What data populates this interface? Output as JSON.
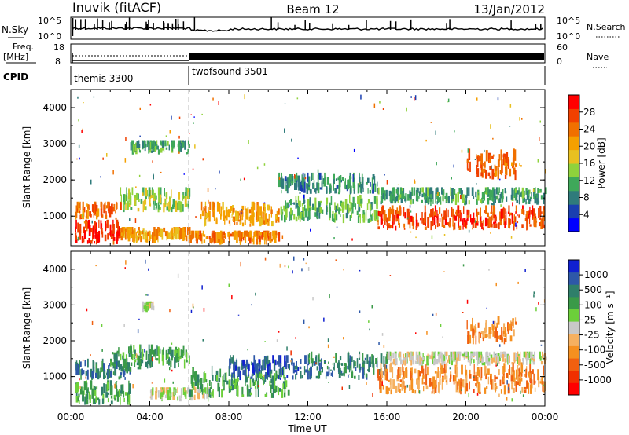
{
  "header": {
    "station": "Inuvik (fitACF)",
    "beam": "Beam 12",
    "date": "13/Jan/2012"
  },
  "top_panels": {
    "nsky_label": "N.Sky",
    "nsearch_label": "N.Search",
    "freq_label_1": "Freq.",
    "freq_label_2": "[MHz]",
    "cpid_label": "CPID",
    "nave_label": "Nave",
    "noise_ticks_left": [
      "10^5",
      "10^0"
    ],
    "noise_ticks_right": [
      "10^5",
      "10^0"
    ],
    "freq_ticks": [
      "18",
      "8"
    ],
    "nave_ticks": [
      "60",
      "0"
    ],
    "cpid_segments": [
      {
        "label": "themis 3300",
        "start_hour": 0
      },
      {
        "label": "twofsound 3501",
        "start_hour": 6
      }
    ]
  },
  "chart_data": [
    {
      "type": "heatmap",
      "panel": "power",
      "ylabel": "Slant Range [km]",
      "xlabel": "",
      "y_ticks": [
        "1000",
        "2000",
        "3000",
        "4000"
      ],
      "ylim": [
        180,
        4500
      ],
      "xlim": [
        0,
        24
      ],
      "colorbar": {
        "label": "Power [dB]",
        "ticks": [
          "4",
          "8",
          "12",
          "16",
          "20",
          "24",
          "28"
        ],
        "range": [
          0,
          32
        ],
        "colors": [
          "#0000ff",
          "#1a3fb0",
          "#2f7b7b",
          "#3fa85a",
          "#8fd23c",
          "#e8c020",
          "#f5a000",
          "#f07000",
          "#f04000",
          "#ff0000"
        ]
      },
      "echo_regions": [
        {
          "x0": 0.2,
          "x1": 2.5,
          "y0": 200,
          "y1": 900,
          "level": 30
        },
        {
          "x0": 0.2,
          "x1": 2.5,
          "y0": 900,
          "y1": 1400,
          "level": 26
        },
        {
          "x0": 2.5,
          "x1": 6.0,
          "y0": 250,
          "y1": 700,
          "level": 22
        },
        {
          "x0": 2.5,
          "x1": 6.0,
          "y0": 1100,
          "y1": 1800,
          "level": 14
        },
        {
          "x0": 6.0,
          "x1": 10.5,
          "y0": 200,
          "y1": 600,
          "level": 24
        },
        {
          "x0": 6.5,
          "x1": 10.5,
          "y0": 700,
          "y1": 1400,
          "level": 22
        },
        {
          "x0": 10.5,
          "x1": 15.5,
          "y0": 800,
          "y1": 1600,
          "level": 12
        },
        {
          "x0": 10.5,
          "x1": 15.5,
          "y0": 1600,
          "y1": 2200,
          "level": 8
        },
        {
          "x0": 15.5,
          "x1": 24.0,
          "y0": 600,
          "y1": 1300,
          "level": 28
        },
        {
          "x0": 15.5,
          "x1": 24.0,
          "y0": 1300,
          "y1": 1800,
          "level": 10
        },
        {
          "x0": 20.0,
          "x1": 22.5,
          "y0": 2000,
          "y1": 2900,
          "level": 26
        },
        {
          "x0": 3.0,
          "x1": 6.0,
          "y0": 2700,
          "y1": 3100,
          "level": 10
        }
      ]
    },
    {
      "type": "heatmap",
      "panel": "velocity",
      "ylabel": "Slant Range [km]",
      "xlabel": "Time UT",
      "x_ticks": [
        "00:00",
        "04:00",
        "08:00",
        "12:00",
        "16:00",
        "20:00",
        "00:00"
      ],
      "y_ticks": [
        "1000",
        "2000",
        "3000",
        "4000"
      ],
      "ylim": [
        180,
        4500
      ],
      "xlim": [
        0,
        24
      ],
      "colorbar": {
        "label": "Velocity [m s⁻¹]",
        "ticks": [
          "1000",
          "500",
          "100",
          "25",
          "-25",
          "-100",
          "-500",
          "-1000"
        ],
        "colors": [
          "#1020d0",
          "#2e58a8",
          "#2f7f6a",
          "#3a9a48",
          "#6ccf3a",
          "#c8c8c8",
          "#f5b060",
          "#f59020",
          "#f06010",
          "#f03000",
          "#ff0000"
        ]
      },
      "echo_regions": [
        {
          "x0": 0.2,
          "x1": 3.0,
          "y0": 200,
          "y1": 900,
          "level": 3
        },
        {
          "x0": 0.2,
          "x1": 3.0,
          "y0": 900,
          "y1": 1500,
          "level": 2
        },
        {
          "x0": 2.0,
          "x1": 6.0,
          "y0": 1200,
          "y1": 1900,
          "level": 3
        },
        {
          "x0": 4.0,
          "x1": 7.0,
          "y0": 300,
          "y1": 700,
          "level": 5
        },
        {
          "x0": 6.0,
          "x1": 11.0,
          "y0": 400,
          "y1": 1300,
          "level": 3
        },
        {
          "x0": 8.0,
          "x1": 12.0,
          "y0": 900,
          "y1": 1600,
          "level": 1
        },
        {
          "x0": 12.0,
          "x1": 16.0,
          "y0": 900,
          "y1": 1700,
          "level": 2
        },
        {
          "x0": 15.5,
          "x1": 24.0,
          "y0": 500,
          "y1": 1400,
          "level": 7
        },
        {
          "x0": 16.0,
          "x1": 24.0,
          "y0": 1300,
          "y1": 1700,
          "level": 5
        },
        {
          "x0": 20.0,
          "x1": 22.5,
          "y0": 1900,
          "y1": 2700,
          "level": 7
        },
        {
          "x0": 3.5,
          "x1": 4.2,
          "y0": 2800,
          "y1": 3100,
          "level": 5
        }
      ]
    }
  ]
}
